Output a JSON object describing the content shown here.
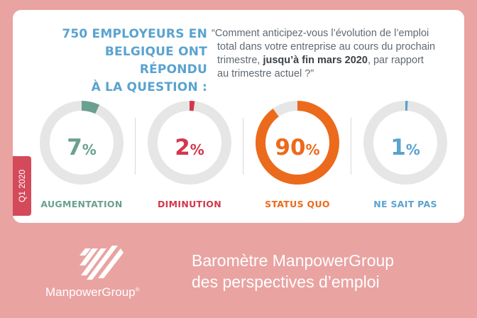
{
  "heading": {
    "line1": "750 EMPLOYEURS EN",
    "line2": "BELGIQUE ONT RÉPONDU",
    "line3": "À LA QUESTION :"
  },
  "question": {
    "part1": "“Comment anticipez-vous l’évolution de l’emploi",
    "part2": "total dans votre entreprise au cours du prochain",
    "part3": "trimestre,",
    "bold": "jusqu’à fin mars 2020",
    "part4": ", par rapport",
    "part5": "au trimestre actuel ?”"
  },
  "period_tag": "Q1 2020",
  "gauges": [
    {
      "value": "7",
      "unit": "%",
      "fraction": 0.07,
      "label": "AUGMENTATION",
      "color": "#6aa090"
    },
    {
      "value": "2",
      "unit": "%",
      "fraction": 0.02,
      "label": "DIMINUTION",
      "color": "#d2384d"
    },
    {
      "value": "90",
      "unit": "%",
      "fraction": 0.9,
      "label": "STATUS QUO",
      "color": "#ec6a1c"
    },
    {
      "value": "1",
      "unit": "%",
      "fraction": 0.01,
      "label": "NE SAIT PAS",
      "color": "#5aa3cf"
    }
  ],
  "track_color": "#e6e6e6",
  "footer": {
    "brand": "ManpowerGroup",
    "trademark": "®",
    "title_line1": "Baromètre ManpowerGroup",
    "title_line2": "des perspectives d’emploi"
  }
}
